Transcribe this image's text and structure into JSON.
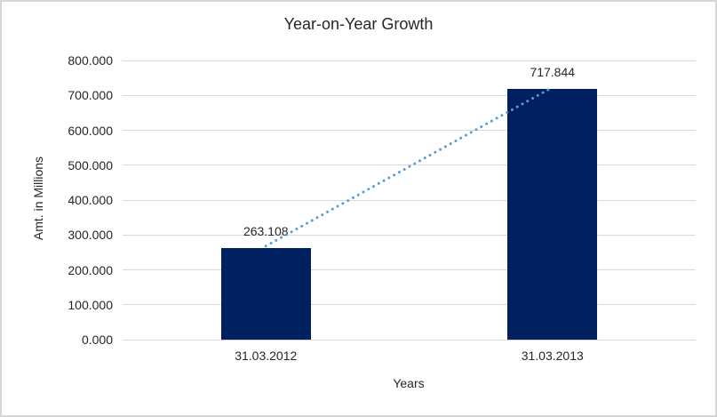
{
  "frame": {
    "background": "#FFFFFF",
    "border_color": "#D6D6D6"
  },
  "chart_data": {
    "type": "bar",
    "title": "Year-on-Year Growth",
    "xlabel": "Years",
    "ylabel": "Amt. in Millions",
    "categories": [
      "31.03.2012",
      "31.03.2013"
    ],
    "values": [
      263.108,
      717.844
    ],
    "data_labels": [
      "263.108",
      "717.844"
    ],
    "ylim": [
      0,
      800
    ],
    "ytick_step": 100,
    "ytick_labels": [
      "0.000",
      "100.000",
      "200.000",
      "300.000",
      "400.000",
      "500.000",
      "600.000",
      "700.000",
      "800.000"
    ],
    "grid": true,
    "legend": "none",
    "bar_color": "#002060",
    "gridline_color": "#D9D9D9",
    "text_color": "#262626",
    "trendline": {
      "type": "linear",
      "style": "dotted-round",
      "color": "#5B9BD5"
    }
  }
}
